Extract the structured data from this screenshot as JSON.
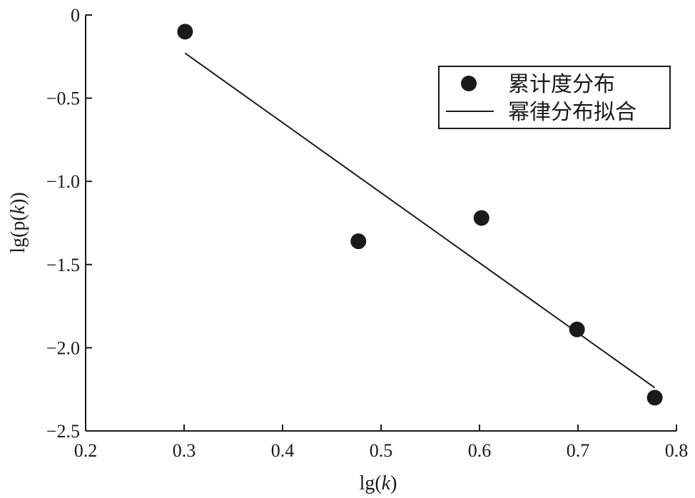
{
  "chart_data": {
    "type": "scatter",
    "xlabel": "lg(k)",
    "ylabel": "lg(p(k))",
    "xlim": [
      0.2,
      0.8
    ],
    "ylim": [
      -2.5,
      0
    ],
    "x_ticks": [
      "0.2",
      "0.3",
      "0.4",
      "0.5",
      "0.6",
      "0.7",
      "0.8"
    ],
    "y_ticks": [
      "0",
      "−0.5",
      "−1.0",
      "−1.5",
      "−2.0",
      "−2.5"
    ],
    "grid": false,
    "legend_position": "top-right",
    "series": [
      {
        "name": "累计度分布",
        "kind": "scatter",
        "color": "#1a1a1a",
        "x": [
          0.301,
          0.477,
          0.602,
          0.699,
          0.778
        ],
        "y": [
          -0.1,
          -1.36,
          -1.22,
          -1.89,
          -2.3
        ]
      },
      {
        "name": "幂律分布拟合",
        "kind": "line",
        "color": "#1a1a1a",
        "x": [
          0.301,
          0.778
        ],
        "y": [
          -0.23,
          -2.24
        ]
      }
    ]
  }
}
